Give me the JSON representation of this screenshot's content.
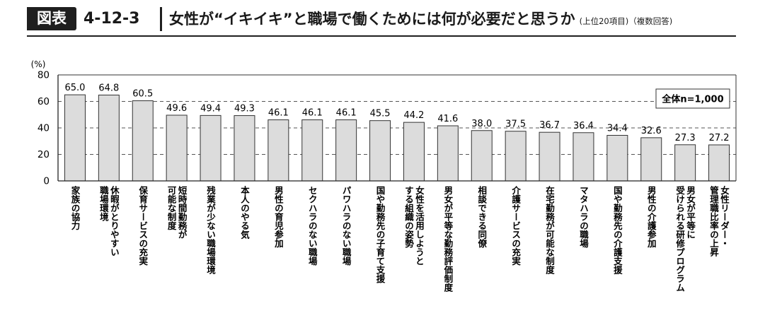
{
  "header": {
    "badge": "図表",
    "figure_number": "4-12-3",
    "title": "女性が“イキイキ”と職場で働くためには何が必要だと思うか",
    "note": "(上位20項目)（複数回答)"
  },
  "chart_data": {
    "type": "bar",
    "ylabel": "(%)",
    "ylim": [
      0,
      80
    ],
    "yticks": [
      "0",
      "20",
      "40",
      "60",
      "80"
    ],
    "legend_box": "全体n=1,000",
    "bar_color": "#dcdcdc",
    "categories": [
      [
        "家族の協力"
      ],
      [
        "休暇がとりやすい",
        "職場環境"
      ],
      [
        "保育サービスの充実"
      ],
      [
        "短時間勤務が",
        "可能な制度"
      ],
      [
        "残業が少ない職場環境"
      ],
      [
        "本人のやる気"
      ],
      [
        "男性の育児参加"
      ],
      [
        "セクハラのない職場"
      ],
      [
        "パワハラのない職場"
      ],
      [
        "国や勤務先の子育て支援"
      ],
      [
        "女性を活用しようと",
        "する組織の姿勢"
      ],
      [
        "男女が平等な勤務評価制度"
      ],
      [
        "相談できる同僚"
      ],
      [
        "介護サービスの充実"
      ],
      [
        "在宅勤務が可能な制度"
      ],
      [
        "マタハラの職場"
      ],
      [
        "国や勤務先の介護支援"
      ],
      [
        "男性の介護参加"
      ],
      [
        "男女が平等に",
        "受けられる研修プログラム"
      ],
      [
        "女性リーダー・",
        "管理職比率の上昇"
      ]
    ],
    "values": [
      65.0,
      64.8,
      60.5,
      49.6,
      49.4,
      49.3,
      46.1,
      46.1,
      46.1,
      45.5,
      44.2,
      41.6,
      38.0,
      37.5,
      36.7,
      36.4,
      34.4,
      32.6,
      27.3,
      27.2
    ],
    "value_labels": [
      "65.0",
      "64.8",
      "60.5",
      "49.6",
      "49.4",
      "49.3",
      "46.1",
      "46.1",
      "46.1",
      "45.5",
      "44.2",
      "41.6",
      "38.0",
      "37.5",
      "36.7",
      "36.4",
      "34.4",
      "32.6",
      "27.3",
      "27.2"
    ],
    "grid": "dashed horizontal"
  }
}
